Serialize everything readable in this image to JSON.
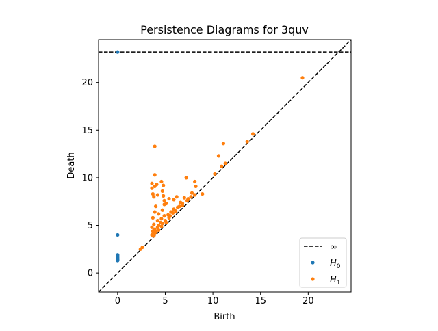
{
  "chart_data": {
    "type": "scatter",
    "title": "Persistence Diagrams for 3quv",
    "xlabel": "Birth",
    "ylabel": "Death",
    "xlim": [
      -2.0,
      24.5
    ],
    "ylim": [
      -2.0,
      24.5
    ],
    "x_ticks": [
      0,
      5,
      10,
      15,
      20
    ],
    "y_ticks": [
      0,
      5,
      10,
      15,
      20
    ],
    "infinity_death": 23.2,
    "legend_position": "lower-right",
    "legend": [
      {
        "label": "∞",
        "kind": "dashed-line",
        "color": "#000000"
      },
      {
        "label": "H",
        "sub": "0",
        "kind": "marker",
        "color": "#1f77b4"
      },
      {
        "label": "H",
        "sub": "1",
        "kind": "marker",
        "color": "#ff7f0e"
      }
    ],
    "series": [
      {
        "name": "H0",
        "color": "#1f77b4",
        "points": [
          [
            0,
            23.2
          ],
          [
            0,
            4.0
          ],
          [
            0,
            1.9
          ],
          [
            0,
            1.8
          ],
          [
            0,
            1.7
          ],
          [
            0,
            1.6
          ],
          [
            0,
            1.5
          ],
          [
            0,
            1.45
          ],
          [
            0,
            1.4
          ],
          [
            0,
            1.35
          ],
          [
            0,
            1.3
          ]
        ]
      },
      {
        "name": "H1",
        "color": "#ff7f0e",
        "points": [
          [
            19.4,
            20.5
          ],
          [
            14.2,
            14.6
          ],
          [
            13.6,
            13.8
          ],
          [
            11.1,
            13.6
          ],
          [
            10.6,
            12.3
          ],
          [
            11.3,
            11.5
          ],
          [
            10.9,
            11.2
          ],
          [
            10.2,
            10.4
          ],
          [
            3.9,
            13.3
          ],
          [
            3.9,
            10.3
          ],
          [
            7.2,
            10.0
          ],
          [
            4.6,
            9.6
          ],
          [
            3.6,
            9.4
          ],
          [
            4.1,
            9.3
          ],
          [
            3.9,
            9.1
          ],
          [
            8.1,
            9.6
          ],
          [
            8.2,
            9.1
          ],
          [
            3.6,
            8.9
          ],
          [
            4.8,
            9.2
          ],
          [
            4.7,
            8.6
          ],
          [
            3.7,
            8.3
          ],
          [
            3.8,
            8.0
          ],
          [
            4.2,
            8.2
          ],
          [
            4.8,
            8.1
          ],
          [
            4.9,
            7.6
          ],
          [
            5.4,
            7.8
          ],
          [
            5.9,
            7.7
          ],
          [
            6.2,
            8.0
          ],
          [
            7.0,
            7.9
          ],
          [
            7.3,
            7.6
          ],
          [
            7.7,
            8.0
          ],
          [
            8.1,
            8.2
          ],
          [
            8.9,
            8.3
          ],
          [
            7.8,
            8.4
          ],
          [
            4.9,
            7.2
          ],
          [
            5.1,
            7.3
          ],
          [
            6.6,
            7.4
          ],
          [
            6.8,
            7.1
          ],
          [
            4.0,
            7.0
          ],
          [
            4.7,
            6.6
          ],
          [
            3.9,
            6.4
          ],
          [
            4.3,
            6.2
          ],
          [
            4.9,
            6.0
          ],
          [
            5.3,
            6.1
          ],
          [
            5.6,
            6.4
          ],
          [
            5.9,
            6.7
          ],
          [
            6.3,
            6.9
          ],
          [
            6.8,
            7.3
          ],
          [
            3.7,
            5.8
          ],
          [
            4.2,
            5.5
          ],
          [
            4.6,
            5.7
          ],
          [
            5.0,
            5.5
          ],
          [
            5.4,
            5.8
          ],
          [
            3.8,
            5.1
          ],
          [
            4.3,
            5.0
          ],
          [
            4.7,
            5.2
          ],
          [
            5.1,
            5.3
          ],
          [
            3.6,
            4.8
          ],
          [
            3.9,
            4.6
          ],
          [
            4.2,
            4.8
          ],
          [
            4.6,
            4.9
          ],
          [
            3.7,
            4.4
          ],
          [
            3.9,
            4.2
          ],
          [
            4.3,
            4.5
          ],
          [
            3.6,
            4.0
          ],
          [
            3.8,
            3.9
          ],
          [
            4.0,
            4.3
          ],
          [
            2.4,
            2.5
          ],
          [
            2.6,
            2.7
          ],
          [
            5.8,
            6.3
          ],
          [
            6.1,
            6.5
          ],
          [
            6.5,
            7.0
          ],
          [
            5.5,
            6.0
          ],
          [
            4.5,
            5.3
          ],
          [
            7.4,
            7.8
          ]
        ]
      }
    ]
  }
}
